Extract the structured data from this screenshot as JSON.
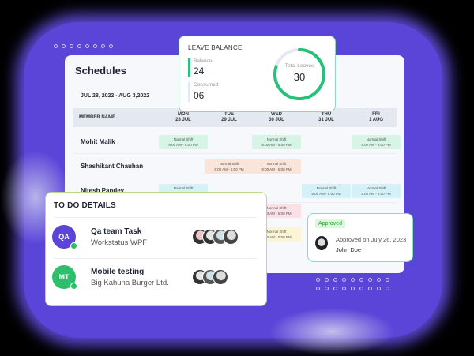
{
  "schedules": {
    "title": "Schedules",
    "date_range": "JUL 28, 2022 - AUG 3,2022",
    "member_header": "MEMBER NAME",
    "days": [
      {
        "day": "MON",
        "date": "28 JUL"
      },
      {
        "day": "TUE",
        "date": "29 JUL"
      },
      {
        "day": "WED",
        "date": "30 JUL"
      },
      {
        "day": "THU",
        "date": "31 JUL"
      },
      {
        "day": "FRI",
        "date": "1 AUG"
      }
    ],
    "shift_label": "Normal Shift",
    "shift_time": "9:00 AM - 5:00 PM",
    "members": [
      {
        "name": "Mohit Malik",
        "shift_days": [
          "MON",
          "WED",
          "FRI"
        ],
        "color": "#d6f5e6"
      },
      {
        "name": "Shashikant Chauhan",
        "shift_days": [
          "TUE",
          "WED"
        ],
        "color": "#fbe4d8"
      },
      {
        "name": "Nitesh Pandey",
        "shift_days": [
          "MON",
          "THU",
          "FRI"
        ],
        "color": "#d5f1f8"
      }
    ]
  },
  "leave_balance": {
    "title": "LEAVE BALANCE",
    "balance_label": "Balance",
    "balance": "24",
    "consumed_label": "Consumed",
    "consumed": "06",
    "total_label": "Total Leaves",
    "total": "30",
    "accent": "#27c27a"
  },
  "todo": {
    "title": "TO DO DETAILS",
    "items": [
      {
        "initials": "QA",
        "title": "Qa team Task",
        "subtitle": "Workstatus WPF",
        "color": "#5b45d8"
      },
      {
        "initials": "MT",
        "title": "Mobile testing",
        "subtitle": "Big Kahuna Burger Ltd.",
        "color": "#2dbf6c"
      }
    ]
  },
  "approval": {
    "badge": "Approved",
    "text": "Approved on July 26, 2023",
    "name": "John Doe"
  }
}
